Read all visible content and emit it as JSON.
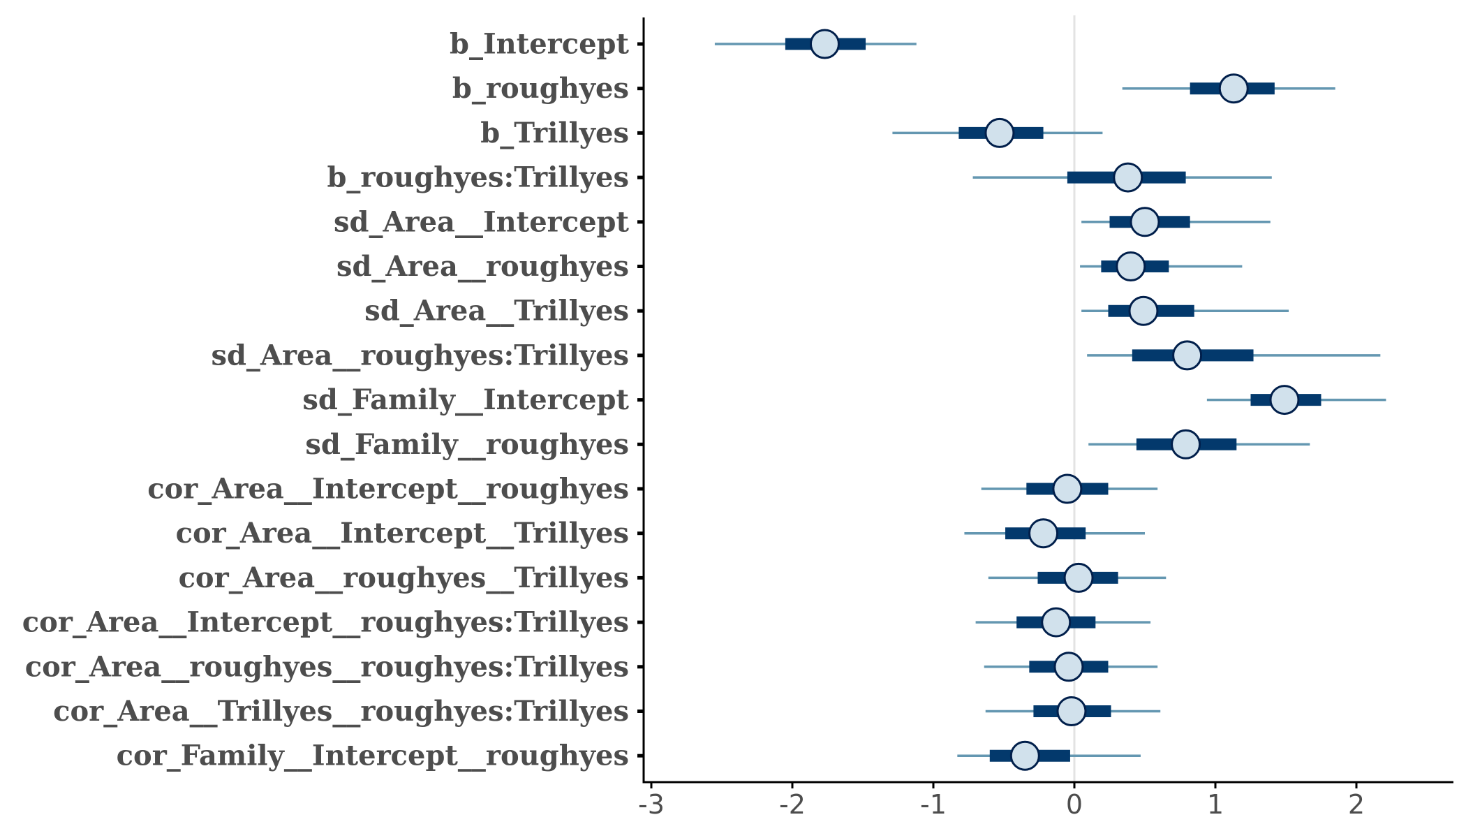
{
  "chart_data": {
    "type": "interval",
    "title": "",
    "xlabel": "",
    "ylabel": "",
    "xlim": [
      -3,
      2.7
    ],
    "xticks": [
      -3,
      -2,
      -1,
      0,
      1,
      2
    ],
    "grid": false,
    "reference_line": 0,
    "colors": {
      "outer_interval": "#6497b1",
      "inner_interval": "#03396c",
      "point_fill": "#d1e1ec",
      "point_stroke": "#011f4b",
      "reference_line": "#e3e3e3",
      "axis": "#000000",
      "label_text": "#4d4d4d"
    },
    "parameters": [
      {
        "label": "b_Intercept",
        "point": -1.77,
        "inner": [
          -2.05,
          -1.48
        ],
        "outer": [
          -2.55,
          -1.12
        ]
      },
      {
        "label": "b_roughyes",
        "point": 1.13,
        "inner": [
          0.82,
          1.42
        ],
        "outer": [
          0.34,
          1.85
        ]
      },
      {
        "label": "b_Trillyes",
        "point": -0.53,
        "inner": [
          -0.82,
          -0.22
        ],
        "outer": [
          -1.29,
          0.2
        ]
      },
      {
        "label": "b_roughyes:Trillyes",
        "point": 0.38,
        "inner": [
          -0.05,
          0.79
        ],
        "outer": [
          -0.72,
          1.4
        ]
      },
      {
        "label": "sd_Area__Intercept",
        "point": 0.5,
        "inner": [
          0.25,
          0.82
        ],
        "outer": [
          0.05,
          1.39
        ]
      },
      {
        "label": "sd_Area__roughyes",
        "point": 0.4,
        "inner": [
          0.19,
          0.67
        ],
        "outer": [
          0.04,
          1.19
        ]
      },
      {
        "label": "sd_Area__Trillyes",
        "point": 0.49,
        "inner": [
          0.24,
          0.85
        ],
        "outer": [
          0.05,
          1.52
        ]
      },
      {
        "label": "sd_Area__roughyes:Trillyes",
        "point": 0.8,
        "inner": [
          0.41,
          1.27
        ],
        "outer": [
          0.09,
          2.17
        ]
      },
      {
        "label": "sd_Family__Intercept",
        "point": 1.49,
        "inner": [
          1.25,
          1.75
        ],
        "outer": [
          0.94,
          2.21
        ]
      },
      {
        "label": "sd_Family__roughyes",
        "point": 0.79,
        "inner": [
          0.44,
          1.15
        ],
        "outer": [
          0.1,
          1.67
        ]
      },
      {
        "label": "cor_Area__Intercept__roughyes",
        "point": -0.05,
        "inner": [
          -0.34,
          0.24
        ],
        "outer": [
          -0.66,
          0.59
        ]
      },
      {
        "label": "cor_Area__Intercept__Trillyes",
        "point": -0.22,
        "inner": [
          -0.49,
          0.08
        ],
        "outer": [
          -0.78,
          0.5
        ]
      },
      {
        "label": "cor_Area__roughyes__Trillyes",
        "point": 0.03,
        "inner": [
          -0.26,
          0.31
        ],
        "outer": [
          -0.61,
          0.65
        ]
      },
      {
        "label": "cor_Area__Intercept__roughyes:Trillyes",
        "point": -0.13,
        "inner": [
          -0.41,
          0.15
        ],
        "outer": [
          -0.7,
          0.54
        ]
      },
      {
        "label": "cor_Area__roughyes__roughyes:Trillyes",
        "point": -0.04,
        "inner": [
          -0.32,
          0.24
        ],
        "outer": [
          -0.64,
          0.59
        ]
      },
      {
        "label": "cor_Area__Trillyes__roughyes:Trillyes",
        "point": -0.02,
        "inner": [
          -0.29,
          0.26
        ],
        "outer": [
          -0.63,
          0.61
        ]
      },
      {
        "label": "cor_Family__Intercept__roughyes",
        "point": -0.35,
        "inner": [
          -0.6,
          -0.03
        ],
        "outer": [
          -0.83,
          0.47
        ]
      }
    ]
  }
}
